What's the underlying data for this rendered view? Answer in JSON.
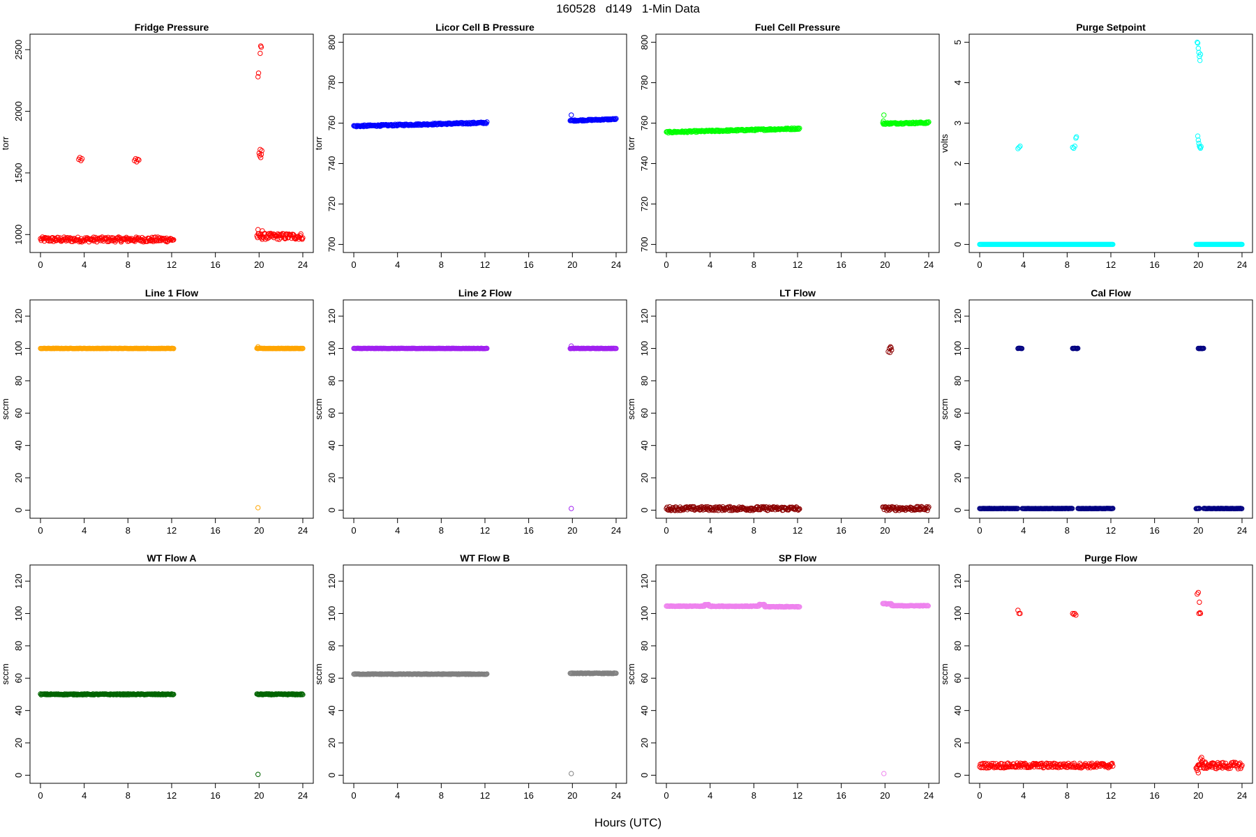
{
  "page": {
    "title": "160528   d149   1-Min Data",
    "xlabel": "Hours (UTC)"
  },
  "chart_data": [
    {
      "type": "scatter",
      "title": "Fridge Pressure",
      "ylabel": "torr",
      "xlim": [
        0,
        24
      ],
      "ylim": [
        920,
        2560
      ],
      "xticks": [
        0,
        4,
        8,
        12,
        16,
        20,
        24
      ],
      "yticks": [
        1000,
        1500,
        2000,
        2500
      ],
      "color": "#ff0000",
      "marker": "open-circle",
      "segments": [
        {
          "x": [
            0,
            12.2
          ],
          "y": 960,
          "jitter": 20
        },
        {
          "x": [
            19.8,
            24
          ],
          "y": 985,
          "jitter": 25
        }
      ],
      "points": [
        [
          3.5,
          1610
        ],
        [
          3.6,
          1625
        ],
        [
          3.7,
          1600
        ],
        [
          3.8,
          1615
        ],
        [
          8.6,
          1600
        ],
        [
          8.7,
          1615
        ],
        [
          8.8,
          1590
        ],
        [
          8.9,
          1610
        ],
        [
          9.0,
          1605
        ],
        [
          19.9,
          2280
        ],
        [
          19.95,
          2310
        ],
        [
          20.1,
          2470
        ],
        [
          20.15,
          2530
        ],
        [
          20.2,
          2520
        ],
        [
          20.0,
          1660
        ],
        [
          20.05,
          1640
        ],
        [
          20.1,
          1690
        ],
        [
          20.15,
          1625
        ],
        [
          20.2,
          1650
        ],
        [
          20.25,
          1680
        ],
        [
          19.9,
          1040
        ],
        [
          20.3,
          1030
        ]
      ]
    },
    {
      "type": "scatter",
      "title": "Licor Cell B Pressure",
      "ylabel": "torr",
      "xlim": [
        0,
        24
      ],
      "ylim": [
        700,
        800
      ],
      "xticks": [
        0,
        4,
        8,
        12,
        16,
        20,
        24
      ],
      "yticks": [
        700,
        720,
        740,
        760,
        780,
        800
      ],
      "color": "#0000ff",
      "marker": "open-circle",
      "segments": [
        {
          "x": [
            0,
            12.2
          ],
          "y": [
            758.5,
            760.2
          ],
          "jitter": 0.4
        },
        {
          "x": [
            19.8,
            24
          ],
          "y": [
            761.2,
            762
          ],
          "jitter": 0.3
        }
      ],
      "points": [
        [
          19.9,
          764
        ]
      ]
    },
    {
      "type": "scatter",
      "title": "Fuel Cell Pressure",
      "ylabel": "torr",
      "xlim": [
        0,
        24
      ],
      "ylim": [
        700,
        800
      ],
      "xticks": [
        0,
        4,
        8,
        12,
        16,
        20,
        24
      ],
      "yticks": [
        700,
        720,
        740,
        760,
        780,
        800
      ],
      "color": "#00ff00",
      "marker": "open-circle",
      "segments": [
        {
          "x": [
            0,
            12.2
          ],
          "y": [
            755.5,
            757.3
          ],
          "jitter": 0.4
        },
        {
          "x": [
            19.8,
            24
          ],
          "y": [
            759.8,
            760.2
          ],
          "jitter": 0.4
        }
      ],
      "points": [
        [
          19.9,
          764
        ],
        [
          19.85,
          761
        ]
      ]
    },
    {
      "type": "scatter",
      "title": "Purge Setpoint",
      "ylabel": "volts",
      "xlim": [
        0,
        24
      ],
      "ylim": [
        0,
        5
      ],
      "xticks": [
        0,
        4,
        8,
        12,
        16,
        20,
        24
      ],
      "yticks": [
        0,
        1,
        2,
        3,
        4,
        5
      ],
      "color": "#00ffff",
      "marker": "open-circle",
      "segments": [
        {
          "x": [
            0,
            12.2
          ],
          "y": 0,
          "jitter": 0
        },
        {
          "x": [
            19.8,
            24
          ],
          "y": 0,
          "jitter": 0
        }
      ],
      "points": [
        [
          3.5,
          2.37
        ],
        [
          3.6,
          2.4
        ],
        [
          3.7,
          2.43
        ],
        [
          8.5,
          2.4
        ],
        [
          8.6,
          2.38
        ],
        [
          8.7,
          2.43
        ],
        [
          8.8,
          2.63
        ],
        [
          8.85,
          2.66
        ],
        [
          19.9,
          5.0
        ],
        [
          19.95,
          4.98
        ],
        [
          20.0,
          4.85
        ],
        [
          20.05,
          4.75
        ],
        [
          20.1,
          4.65
        ],
        [
          20.15,
          4.55
        ],
        [
          20.2,
          4.7
        ],
        [
          19.95,
          2.68
        ],
        [
          20.0,
          2.58
        ],
        [
          20.05,
          2.5
        ],
        [
          20.1,
          2.43
        ],
        [
          20.15,
          2.4
        ],
        [
          20.2,
          2.38
        ],
        [
          20.25,
          2.42
        ]
      ]
    },
    {
      "type": "scatter",
      "title": "Line 1 Flow",
      "ylabel": "sccm",
      "xlim": [
        0,
        24
      ],
      "ylim": [
        0,
        125
      ],
      "xticks": [
        0,
        4,
        8,
        12,
        16,
        20,
        24
      ],
      "yticks": [
        0,
        20,
        40,
        60,
        80,
        100,
        120
      ],
      "color": "#ffa500",
      "marker": "open-circle",
      "segments": [
        {
          "x": [
            0,
            12.2
          ],
          "y": 100,
          "jitter": 0.1
        },
        {
          "x": [
            19.8,
            24
          ],
          "y": 100,
          "jitter": 0.1
        }
      ],
      "points": [
        [
          19.9,
          101
        ],
        [
          19.9,
          1.5
        ]
      ]
    },
    {
      "type": "scatter",
      "title": "Line 2 Flow",
      "ylabel": "sccm",
      "xlim": [
        0,
        24
      ],
      "ylim": [
        0,
        125
      ],
      "xticks": [
        0,
        4,
        8,
        12,
        16,
        20,
        24
      ],
      "yticks": [
        0,
        20,
        40,
        60,
        80,
        100,
        120
      ],
      "color": "#a020f0",
      "marker": "open-circle",
      "segments": [
        {
          "x": [
            0,
            12.2
          ],
          "y": 100,
          "jitter": 0.1
        },
        {
          "x": [
            19.8,
            24
          ],
          "y": 100,
          "jitter": 0.1
        }
      ],
      "points": [
        [
          19.9,
          101.5
        ],
        [
          19.9,
          1
        ]
      ]
    },
    {
      "type": "scatter",
      "title": "LT Flow",
      "ylabel": "sccm",
      "xlim": [
        0,
        24
      ],
      "ylim": [
        0,
        125
      ],
      "xticks": [
        0,
        4,
        8,
        12,
        16,
        20,
        24
      ],
      "yticks": [
        0,
        20,
        40,
        60,
        80,
        100,
        120
      ],
      "color": "#8b0000",
      "marker": "open-circle",
      "segments": [
        {
          "x": [
            0,
            12.2
          ],
          "y": 1,
          "jitter": 1.2
        },
        {
          "x": [
            19.8,
            24
          ],
          "y": 1,
          "jitter": 1.2
        }
      ],
      "points": [
        [
          20.3,
          98
        ],
        [
          20.4,
          100
        ],
        [
          20.5,
          101
        ],
        [
          20.6,
          99
        ],
        [
          20.45,
          97.5
        ],
        [
          20.55,
          100.5
        ]
      ]
    },
    {
      "type": "scatter",
      "title": "Cal Flow",
      "ylabel": "sccm",
      "xlim": [
        0,
        24
      ],
      "ylim": [
        0,
        125
      ],
      "xticks": [
        0,
        4,
        8,
        12,
        16,
        20,
        24
      ],
      "yticks": [
        0,
        20,
        40,
        60,
        80,
        100,
        120
      ],
      "color": "#000080",
      "marker": "open-circle",
      "segments": [
        {
          "x": [
            0,
            3.5
          ],
          "y": 1,
          "jitter": 0.1
        },
        {
          "x": [
            3.9,
            8.5
          ],
          "y": 1,
          "jitter": 0.1
        },
        {
          "x": [
            9.0,
            12.2
          ],
          "y": 1,
          "jitter": 0.1
        },
        {
          "x": [
            19.8,
            20.1
          ],
          "y": 1,
          "jitter": 0.1
        },
        {
          "x": [
            20.5,
            24
          ],
          "y": 1,
          "jitter": 0.1
        },
        {
          "x": [
            3.5,
            3.9
          ],
          "y": 100,
          "jitter": 0.1
        },
        {
          "x": [
            8.5,
            9.0
          ],
          "y": 100,
          "jitter": 0.1
        },
        {
          "x": [
            20.0,
            20.5
          ],
          "y": 100,
          "jitter": 0.1
        }
      ],
      "points": []
    },
    {
      "type": "scatter",
      "title": "WT Flow A",
      "ylabel": "sccm",
      "xlim": [
        0,
        24
      ],
      "ylim": [
        0,
        125
      ],
      "xticks": [
        0,
        4,
        8,
        12,
        16,
        20,
        24
      ],
      "yticks": [
        0,
        20,
        40,
        60,
        80,
        100,
        120
      ],
      "color": "#006400",
      "marker": "open-circle",
      "segments": [
        {
          "x": [
            0,
            12.2
          ],
          "y": 50,
          "jitter": 0.3
        },
        {
          "x": [
            19.8,
            24
          ],
          "y": 50,
          "jitter": 0.3
        }
      ],
      "points": [
        [
          19.9,
          0.5
        ]
      ]
    },
    {
      "type": "scatter",
      "title": "WT Flow B",
      "ylabel": "sccm",
      "xlim": [
        0,
        24
      ],
      "ylim": [
        0,
        125
      ],
      "xticks": [
        0,
        4,
        8,
        12,
        16,
        20,
        24
      ],
      "yticks": [
        0,
        20,
        40,
        60,
        80,
        100,
        120
      ],
      "color": "#808080",
      "marker": "open-circle",
      "segments": [
        {
          "x": [
            0,
            12.2
          ],
          "y": 62.5,
          "jitter": 0.2
        },
        {
          "x": [
            19.8,
            24
          ],
          "y": 63,
          "jitter": 0.2
        }
      ],
      "points": [
        [
          19.9,
          1
        ]
      ]
    },
    {
      "type": "scatter",
      "title": "SP Flow",
      "ylabel": "sccm",
      "xlim": [
        0,
        24
      ],
      "ylim": [
        0,
        125
      ],
      "xticks": [
        0,
        4,
        8,
        12,
        16,
        20,
        24
      ],
      "yticks": [
        0,
        20,
        40,
        60,
        80,
        100,
        120
      ],
      "color": "#ee82ee",
      "marker": "open-circle",
      "segments": [
        {
          "x": [
            0,
            3.5
          ],
          "y": 104.5,
          "jitter": 0.2
        },
        {
          "x": [
            3.5,
            3.9
          ],
          "y": 105.5,
          "jitter": 0.2
        },
        {
          "x": [
            3.9,
            8.5
          ],
          "y": 104.5,
          "jitter": 0.2
        },
        {
          "x": [
            8.5,
            9.0
          ],
          "y": 105.5,
          "jitter": 0.2
        },
        {
          "x": [
            9.0,
            12.2
          ],
          "y": 104.2,
          "jitter": 0.2
        },
        {
          "x": [
            19.8,
            20.6
          ],
          "y": 106,
          "jitter": 0.3
        },
        {
          "x": [
            20.6,
            24
          ],
          "y": 104.8,
          "jitter": 0.2
        }
      ],
      "points": [
        [
          19.9,
          1
        ]
      ]
    },
    {
      "type": "scatter",
      "title": "Purge Flow",
      "ylabel": "sccm",
      "xlim": [
        0,
        24
      ],
      "ylim": [
        0,
        125
      ],
      "xticks": [
        0,
        4,
        8,
        12,
        16,
        20,
        24
      ],
      "yticks": [
        0,
        20,
        40,
        60,
        80,
        100,
        120
      ],
      "color": "#ff0000",
      "marker": "open-circle",
      "segments": [
        {
          "x": [
            0,
            12.2
          ],
          "y": 6,
          "jitter": 1.5
        },
        {
          "x": [
            19.8,
            24
          ],
          "y": 6,
          "jitter": 2
        }
      ],
      "points": [
        [
          3.5,
          102
        ],
        [
          3.6,
          100
        ],
        [
          3.7,
          100
        ],
        [
          8.5,
          100
        ],
        [
          8.6,
          99.5
        ],
        [
          8.7,
          100
        ],
        [
          8.8,
          99
        ],
        [
          19.9,
          112
        ],
        [
          20.0,
          113
        ],
        [
          20.1,
          107
        ],
        [
          20.05,
          100
        ],
        [
          20.15,
          100.5
        ],
        [
          20.2,
          100
        ],
        [
          19.9,
          3
        ],
        [
          20.0,
          1.5
        ],
        [
          20.2,
          10
        ],
        [
          20.3,
          11
        ],
        [
          20.4,
          9
        ]
      ]
    }
  ]
}
